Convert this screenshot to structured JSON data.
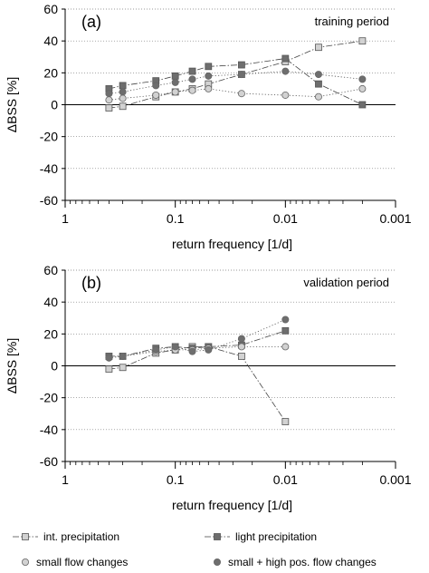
{
  "chart_data": [
    {
      "type": "line",
      "panel_label": "(a)",
      "period_label": "training period",
      "ylabel": "ΔBSS [%]",
      "xlabel": "return frequency [1/d]",
      "x_scale": "log",
      "x_reversed": true,
      "xlim": [
        1,
        0.001
      ],
      "ylim": [
        -60,
        60
      ],
      "y_ticks": [
        60,
        40,
        20,
        0,
        -20,
        -40,
        -60
      ],
      "x_ticks": [
        1,
        0.1,
        0.01,
        0.001
      ],
      "x_tick_labels": [
        "1",
        "0.1",
        "0.01",
        "0.001"
      ],
      "grid": "horizontal",
      "series": [
        {
          "name": "int. precipitation",
          "marker": "square",
          "fill": "#d2d2d2",
          "line": "dash-dot",
          "x": [
            0.4,
            0.3,
            0.15,
            0.1,
            0.07,
            0.05,
            0.025,
            0.01,
            0.005,
            0.002
          ],
          "y": [
            -2,
            -1,
            5,
            8,
            10,
            13,
            19,
            27,
            36,
            40
          ]
        },
        {
          "name": "light precipitation",
          "marker": "square",
          "fill": "#6e6e6e",
          "line": "dash-dot",
          "x": [
            0.4,
            0.3,
            0.15,
            0.1,
            0.07,
            0.05,
            0.025,
            0.01,
            0.005,
            0.002
          ],
          "y": [
            10,
            12,
            15,
            18,
            21,
            24,
            25,
            29,
            13,
            0
          ]
        },
        {
          "name": "small flow changes",
          "marker": "circle",
          "fill": "#d2d2d2",
          "line": "dotted",
          "x": [
            0.4,
            0.3,
            0.15,
            0.1,
            0.07,
            0.05,
            0.025,
            0.01,
            0.005,
            0.002
          ],
          "y": [
            3,
            4,
            6,
            8,
            9,
            10,
            7,
            6,
            5,
            10
          ]
        },
        {
          "name": "small + high pos. flow changes",
          "marker": "circle",
          "fill": "#6e6e6e",
          "line": "dotted",
          "x": [
            0.4,
            0.3,
            0.15,
            0.1,
            0.07,
            0.05,
            0.025,
            0.01,
            0.005,
            0.002
          ],
          "y": [
            7,
            8,
            12,
            14,
            16,
            18,
            19,
            21,
            19,
            16
          ]
        }
      ]
    },
    {
      "type": "line",
      "panel_label": "(b)",
      "period_label": "validation period",
      "ylabel": "ΔBSS [%]",
      "xlabel": "return frequency [1/d]",
      "x_scale": "log",
      "x_reversed": true,
      "xlim": [
        1,
        0.001
      ],
      "ylim": [
        -60,
        60
      ],
      "y_ticks": [
        60,
        40,
        20,
        0,
        -20,
        -40,
        -60
      ],
      "x_ticks": [
        1,
        0.1,
        0.01,
        0.001
      ],
      "x_tick_labels": [
        "1",
        "0.1",
        "0.01",
        "0.001"
      ],
      "grid": "horizontal",
      "series": [
        {
          "name": "int. precipitation",
          "marker": "square",
          "fill": "#d2d2d2",
          "line": "dash-dot",
          "x": [
            0.4,
            0.3,
            0.15,
            0.1,
            0.07,
            0.05,
            0.025,
            0.01
          ],
          "y": [
            -2,
            -1,
            8,
            10,
            12,
            12,
            6,
            -35
          ]
        },
        {
          "name": "light precipitation",
          "marker": "square",
          "fill": "#6e6e6e",
          "line": "dash-dot",
          "x": [
            0.4,
            0.3,
            0.15,
            0.1,
            0.07,
            0.05,
            0.025,
            0.01
          ],
          "y": [
            6,
            6,
            11,
            12,
            11,
            12,
            13,
            22
          ]
        },
        {
          "name": "small flow changes",
          "marker": "circle",
          "fill": "#d2d2d2",
          "line": "dotted",
          "x": [
            0.4,
            0.3,
            0.15,
            0.1,
            0.07,
            0.05,
            0.025,
            0.01
          ],
          "y": [
            5,
            6,
            9,
            10,
            10,
            11,
            12,
            12
          ]
        },
        {
          "name": "small + high pos. flow changes",
          "marker": "circle",
          "fill": "#6e6e6e",
          "line": "dotted",
          "x": [
            0.4,
            0.3,
            0.15,
            0.1,
            0.07,
            0.05,
            0.025,
            0.01
          ],
          "y": [
            5,
            6,
            10,
            12,
            9,
            10,
            17,
            29
          ]
        }
      ]
    }
  ],
  "legend": {
    "placement": "bottom",
    "entries": [
      {
        "label": "int. precipitation",
        "marker": "square",
        "fill": "#d2d2d2",
        "line": "dash-dot"
      },
      {
        "label": "light precipitation",
        "marker": "square",
        "fill": "#6e6e6e",
        "line": "dash-dot"
      },
      {
        "label": "small flow changes",
        "marker": "circle",
        "fill": "#d2d2d2",
        "line": "none"
      },
      {
        "label": "small + high pos. flow changes",
        "marker": "circle",
        "fill": "#6e6e6e",
        "line": "none"
      }
    ]
  }
}
